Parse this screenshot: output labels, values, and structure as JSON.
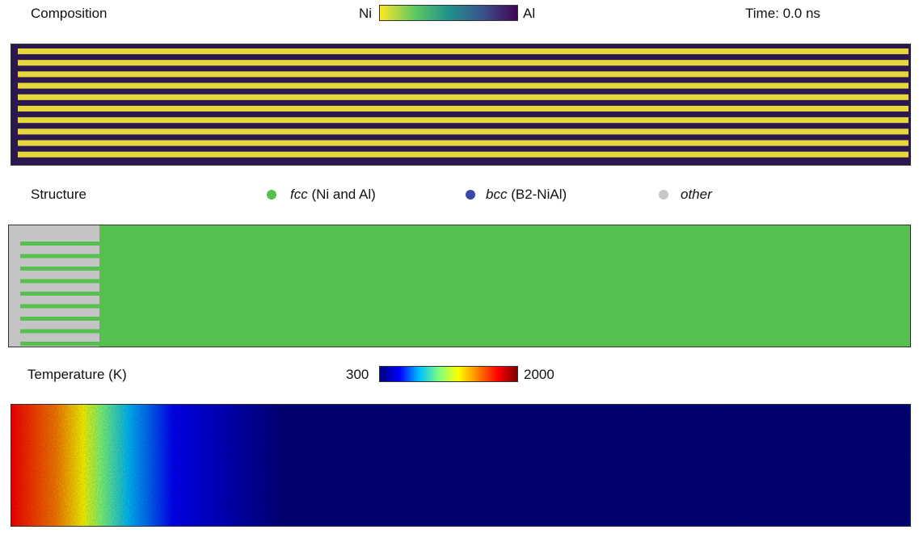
{
  "composition": {
    "title": "Composition",
    "colorbar": {
      "left": "Ni",
      "right": "Al",
      "colors": [
        "#fde725",
        "#5ec962",
        "#21918c",
        "#3b528b",
        "#440154"
      ]
    },
    "time": "Time: 0.0 ns",
    "stripe_colors": {
      "ni": "#e6d83a",
      "al": "#2c1750"
    },
    "stripe_count": 10
  },
  "structure": {
    "title": "Structure",
    "legend": [
      {
        "italic": "fcc",
        "rest": " (Ni and Al)",
        "color": "#55c04d"
      },
      {
        "italic": "bcc",
        "rest": " (B2-NiAl)",
        "color": "#3a49a8"
      },
      {
        "italic": "other",
        "rest": "",
        "color": "#c8c8c8"
      }
    ],
    "colors": {
      "fcc": "#55c04d",
      "other": "#c4c4c4"
    }
  },
  "temperature": {
    "title": "Temperature (K)",
    "min": "300",
    "max": "2000",
    "colors": [
      "#00007f",
      "#0000ff",
      "#00bfff",
      "#7fff7f",
      "#ffff00",
      "#ff7f00",
      "#ff0000",
      "#7f0000"
    ]
  }
}
